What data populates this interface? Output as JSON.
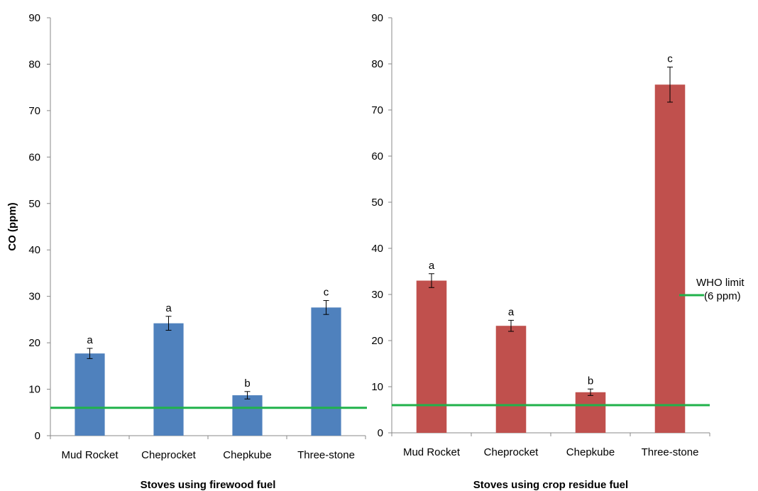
{
  "chart_data": [
    {
      "type": "bar",
      "categories": [
        "Mud Rocket",
        "Cheprocket",
        "Chepkube",
        "Three-stone"
      ],
      "values": [
        17.7,
        24.2,
        8.7,
        27.6
      ],
      "errors": [
        1.1,
        1.5,
        0.8,
        1.5
      ],
      "significance": [
        "a",
        "a",
        "b",
        "c"
      ],
      "color": "#4f81bd",
      "xlabel": "Stoves using firewood fuel",
      "ylabel": "CO (ppm)",
      "ylim": [
        0,
        90
      ],
      "yticks": [
        "0",
        "10",
        "20",
        "30",
        "40",
        "50",
        "60",
        "70",
        "80",
        "90"
      ],
      "reference_line": {
        "value": 6,
        "color": "#21b24b"
      },
      "grid": false
    },
    {
      "type": "bar",
      "categories": [
        "Mud Rocket",
        "Cheprocket",
        "Chepkube",
        "Three-stone"
      ],
      "values": [
        33.0,
        23.2,
        8.8,
        75.5
      ],
      "errors": [
        1.5,
        1.2,
        0.7,
        3.8
      ],
      "significance": [
        "a",
        "a",
        "b",
        "c"
      ],
      "color": "#c0504d",
      "xlabel": "Stoves using crop residue fuel",
      "ylabel": "",
      "ylim": [
        0,
        90
      ],
      "yticks": [
        "0",
        "10",
        "20",
        "30",
        "40",
        "50",
        "60",
        "70",
        "80",
        "90"
      ],
      "reference_line": {
        "value": 6,
        "color": "#21b24b",
        "label_line1": "WHO limit",
        "label_line2": "(6 ppm)"
      },
      "grid": false
    }
  ]
}
